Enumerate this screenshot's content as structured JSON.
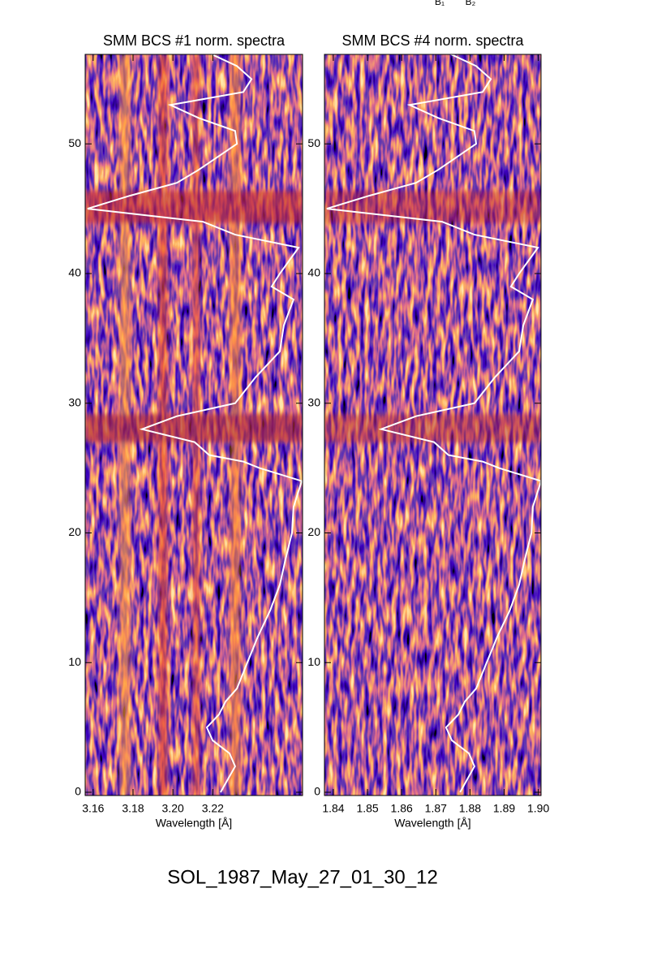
{
  "top_labels": [
    "B₁",
    "B₂"
  ],
  "caption": "SOL_1987_May_27_01_30_12",
  "chart_data": [
    {
      "type": "line",
      "title": "SMM BCS #1 norm. spectra",
      "xlabel": "Wavelength [Å]",
      "xlim": [
        3.156,
        3.265
      ],
      "xticks": [
        3.16,
        3.18,
        {
          "value": 3.2,
          "label": "3.20"
        },
        3.22
      ],
      "ylim": [
        -0.25,
        56.9
      ],
      "yticks": [
        0,
        10,
        20,
        30,
        40,
        50
      ],
      "y": [
        0,
        2,
        3,
        4,
        5,
        6,
        7,
        8,
        10,
        12,
        14,
        16,
        18,
        20,
        22,
        24,
        25,
        25.5,
        26,
        27,
        28,
        29,
        30,
        32,
        34,
        36,
        38,
        39,
        40,
        42,
        43,
        44,
        45,
        46,
        47,
        48,
        50,
        51,
        52,
        53,
        54,
        55,
        56,
        57
      ],
      "series": [
        {
          "color": "#ffffff",
          "values": [
            3.2239,
            3.2312,
            3.2284,
            3.2199,
            3.217,
            3.2231,
            3.2264,
            3.2321,
            3.2373,
            3.2426,
            3.2487,
            3.2536,
            3.2565,
            3.2597,
            3.2605,
            3.2646,
            3.2434,
            3.2353,
            3.2182,
            3.2109,
            3.1845,
            3.202,
            3.2312,
            3.2414,
            3.2536,
            3.2556,
            3.2605,
            3.2495,
            3.2536,
            3.263,
            3.2312,
            3.215,
            3.1572,
            3.1784,
            3.202,
            3.2129,
            3.2321,
            3.2312,
            3.2129,
            3.1987,
            3.2353,
            3.2394,
            3.2321,
            3.2182
          ]
        }
      ]
    },
    {
      "type": "line",
      "title": "SMM BCS #4 norm. spectra",
      "xlabel": "Wavelength [Å]",
      "xlim": [
        1.8374,
        1.9008
      ],
      "xticks": [
        1.84,
        1.85,
        1.86,
        1.87,
        1.88,
        1.89,
        {
          "value": 1.9,
          "label": "1.90"
        }
      ],
      "ylim": [
        -0.25,
        56.9
      ],
      "yticks": [
        0,
        10,
        20,
        30,
        40,
        50
      ],
      "y": [
        0,
        2,
        3,
        4,
        5,
        6,
        7,
        8,
        10,
        12,
        14,
        16,
        18,
        20,
        22,
        24,
        25,
        25.5,
        26,
        27,
        28,
        29,
        30,
        32,
        34,
        36,
        38,
        39,
        40,
        42,
        43,
        44,
        45,
        46,
        47,
        48,
        50,
        51,
        52,
        53,
        54,
        55,
        56,
        57
      ],
      "series": [
        {
          "color": "#ffffff",
          "values": [
            1.8771,
            1.8813,
            1.8797,
            1.8747,
            1.873,
            1.8766,
            1.8785,
            1.8818,
            1.8849,
            1.888,
            1.8916,
            1.8944,
            1.8961,
            1.898,
            1.8984,
            1.9008,
            1.8885,
            1.8837,
            1.8737,
            1.8695,
            1.854,
            1.8642,
            1.8813,
            1.8873,
            1.8944,
            1.8956,
            1.8984,
            1.892,
            1.8944,
            1.8999,
            1.8813,
            1.8718,
            1.8381,
            1.8505,
            1.8642,
            1.8707,
            1.8818,
            1.8813,
            1.8707,
            1.8623,
            1.8837,
            1.8861,
            1.8818,
            1.8737
          ]
        }
      ]
    }
  ]
}
